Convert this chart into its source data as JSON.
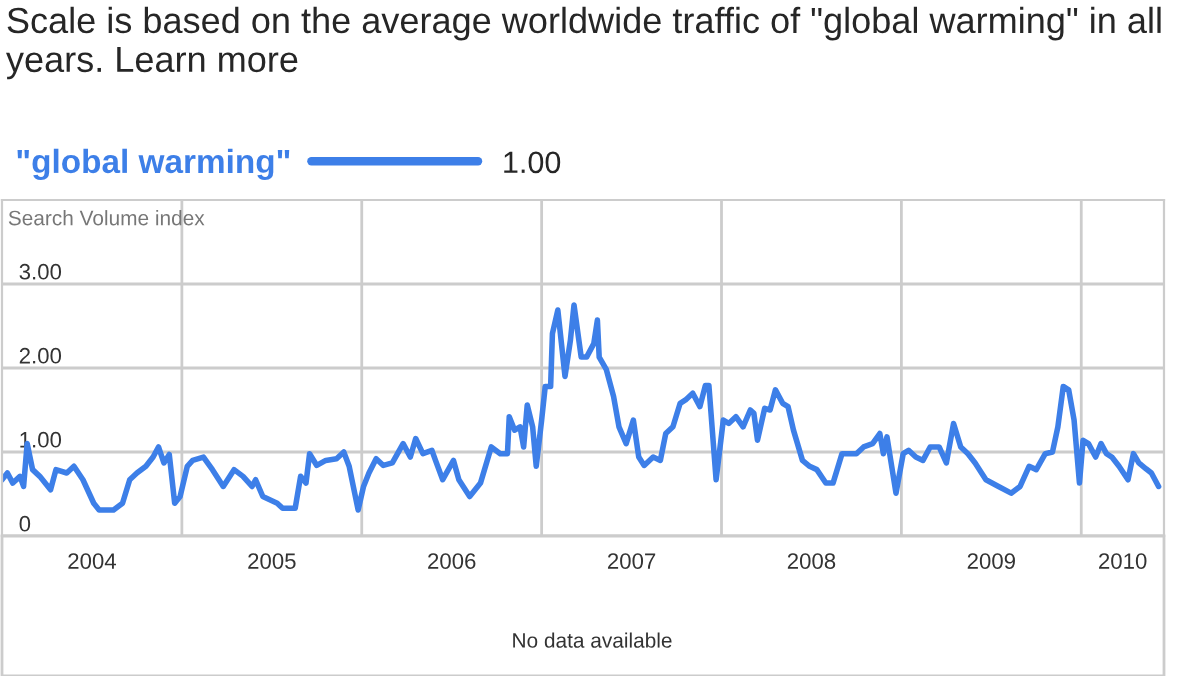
{
  "chart_data": {
    "type": "line",
    "title": "Scale is based on the average worldwide traffic of \"global warming\" in all years. Learn more",
    "ylabel": "Search Volume index",
    "xlim": [
      2004,
      2010.46
    ],
    "ylim": [
      0,
      4
    ],
    "xticks": [
      {
        "value": 2004.5,
        "label": "2004"
      },
      {
        "value": 2005,
        "label": null
      },
      {
        "value": 2005.5,
        "label": "2005"
      },
      {
        "value": 2006,
        "label": null
      },
      {
        "value": 2006.5,
        "label": "2006"
      },
      {
        "value": 2007,
        "label": null
      },
      {
        "value": 2007.5,
        "label": "2007"
      },
      {
        "value": 2008,
        "label": null
      },
      {
        "value": 2008.5,
        "label": "2008"
      },
      {
        "value": 2009,
        "label": null
      },
      {
        "value": 2009.5,
        "label": "2009"
      },
      {
        "value": 2010,
        "label": null
      },
      {
        "value": 2010.23,
        "label": "2010"
      }
    ],
    "yticks": [
      0,
      {
        "value": 1,
        "label": "1.00"
      },
      {
        "value": 2,
        "label": "2.00"
      },
      {
        "value": 3,
        "label": "3.00"
      }
    ],
    "grid": true,
    "legend": "top left",
    "marker": "none",
    "line_style": "solid",
    "annotations": [
      "1.00",
      "No data available"
    ],
    "series": [
      {
        "name": "\"global warming\"",
        "color": "#3d7fe8",
        "x": [
          2004.0,
          2004.03,
          2004.06,
          2004.1,
          2004.12,
          2004.14,
          2004.17,
          2004.21,
          2004.27,
          2004.3,
          2004.36,
          2004.4,
          2004.45,
          2004.51,
          2004.54,
          2004.62,
          2004.67,
          2004.71,
          2004.75,
          2004.8,
          2004.84,
          2004.87,
          2004.9,
          2004.93,
          2004.96,
          2004.99,
          2005.03,
          2005.06,
          2005.12,
          2005.17,
          2005.23,
          2005.29,
          2005.34,
          2005.39,
          2005.41,
          2005.45,
          2005.53,
          2005.56,
          2005.63,
          2005.66,
          2005.69,
          2005.71,
          2005.75,
          2005.8,
          2005.86,
          2005.9,
          2005.93,
          2005.98,
          2006.01,
          2006.04,
          2006.08,
          2006.12,
          2006.17,
          2006.23,
          2006.27,
          2006.3,
          2006.34,
          2006.39,
          2006.41,
          2006.45,
          2006.51,
          2006.54,
          2006.6,
          2006.66,
          2006.72,
          2006.77,
          2006.81,
          2006.82,
          2006.85,
          2006.88,
          2006.9,
          2006.92,
          2006.95,
          2006.97,
          2007.0,
          2007.02,
          2007.05,
          2007.06,
          2007.09,
          2007.13,
          2007.16,
          2007.18,
          2007.22,
          2007.25,
          2007.29,
          2007.31,
          2007.32,
          2007.36,
          2007.4,
          2007.43,
          2007.47,
          2007.51,
          2007.54,
          2007.57,
          2007.62,
          2007.66,
          2007.69,
          2007.73,
          2007.77,
          2007.8,
          2007.84,
          2007.88,
          2007.91,
          2007.93,
          2007.97,
          2008.01,
          2008.04,
          2008.08,
          2008.12,
          2008.16,
          2008.18,
          2008.2,
          2008.24,
          2008.27,
          2008.3,
          2008.34,
          2008.37,
          2008.4,
          2008.45,
          2008.49,
          2008.53,
          2008.58,
          2008.62,
          2008.67,
          2008.71,
          2008.75,
          2008.79,
          2008.84,
          2008.88,
          2008.9,
          2008.92,
          2008.97,
          2009.01,
          2009.04,
          2009.08,
          2009.12,
          2009.16,
          2009.21,
          2009.25,
          2009.29,
          2009.33,
          2009.37,
          2009.41,
          2009.47,
          2009.54,
          2009.61,
          2009.66,
          2009.71,
          2009.75,
          2009.8,
          2009.84,
          2009.87,
          2009.9,
          2009.93,
          2009.96,
          2009.99,
          2010.01,
          2010.04,
          2010.08,
          2010.11,
          2010.14,
          2010.17,
          2010.21,
          2010.26,
          2010.29,
          2010.32,
          2010.36,
          2010.39,
          2010.43
        ],
        "values": [
          0.67,
          0.75,
          0.63,
          0.71,
          0.59,
          1.1,
          0.79,
          0.71,
          0.55,
          0.79,
          0.75,
          0.83,
          0.67,
          0.39,
          0.31,
          0.31,
          0.39,
          0.67,
          0.75,
          0.83,
          0.94,
          1.06,
          0.87,
          0.97,
          0.39,
          0.47,
          0.83,
          0.9,
          0.94,
          0.79,
          0.59,
          0.79,
          0.71,
          0.59,
          0.67,
          0.47,
          0.39,
          0.33,
          0.33,
          0.71,
          0.63,
          0.98,
          0.84,
          0.9,
          0.92,
          1.0,
          0.83,
          0.31,
          0.59,
          0.75,
          0.92,
          0.84,
          0.87,
          1.1,
          0.94,
          1.16,
          0.98,
          1.02,
          0.9,
          0.67,
          0.9,
          0.67,
          0.47,
          0.63,
          1.06,
          0.98,
          0.98,
          1.42,
          1.26,
          1.3,
          1.06,
          1.56,
          1.3,
          0.83,
          1.38,
          1.78,
          1.78,
          2.41,
          2.69,
          1.9,
          2.33,
          2.75,
          2.13,
          2.13,
          2.29,
          2.57,
          2.13,
          1.98,
          1.66,
          1.3,
          1.1,
          1.38,
          0.94,
          0.84,
          0.94,
          0.9,
          1.22,
          1.3,
          1.58,
          1.62,
          1.7,
          1.54,
          1.79,
          1.79,
          0.67,
          1.38,
          1.34,
          1.42,
          1.3,
          1.5,
          1.46,
          1.14,
          1.52,
          1.5,
          1.74,
          1.58,
          1.54,
          1.26,
          0.9,
          0.83,
          0.79,
          0.63,
          0.63,
          0.98,
          0.98,
          0.98,
          1.06,
          1.1,
          1.22,
          0.98,
          1.18,
          0.51,
          0.98,
          1.02,
          0.94,
          0.9,
          1.06,
          1.06,
          0.87,
          1.34,
          1.06,
          0.98,
          0.87,
          0.67,
          0.59,
          0.51,
          0.59,
          0.83,
          0.79,
          0.98,
          1.0,
          1.3,
          1.78,
          1.74,
          1.38,
          0.63,
          1.14,
          1.1,
          0.94,
          1.1,
          0.98,
          0.94,
          0.83,
          0.67,
          0.98,
          0.87,
          0.8,
          0.75,
          0.59
        ]
      }
    ]
  }
}
